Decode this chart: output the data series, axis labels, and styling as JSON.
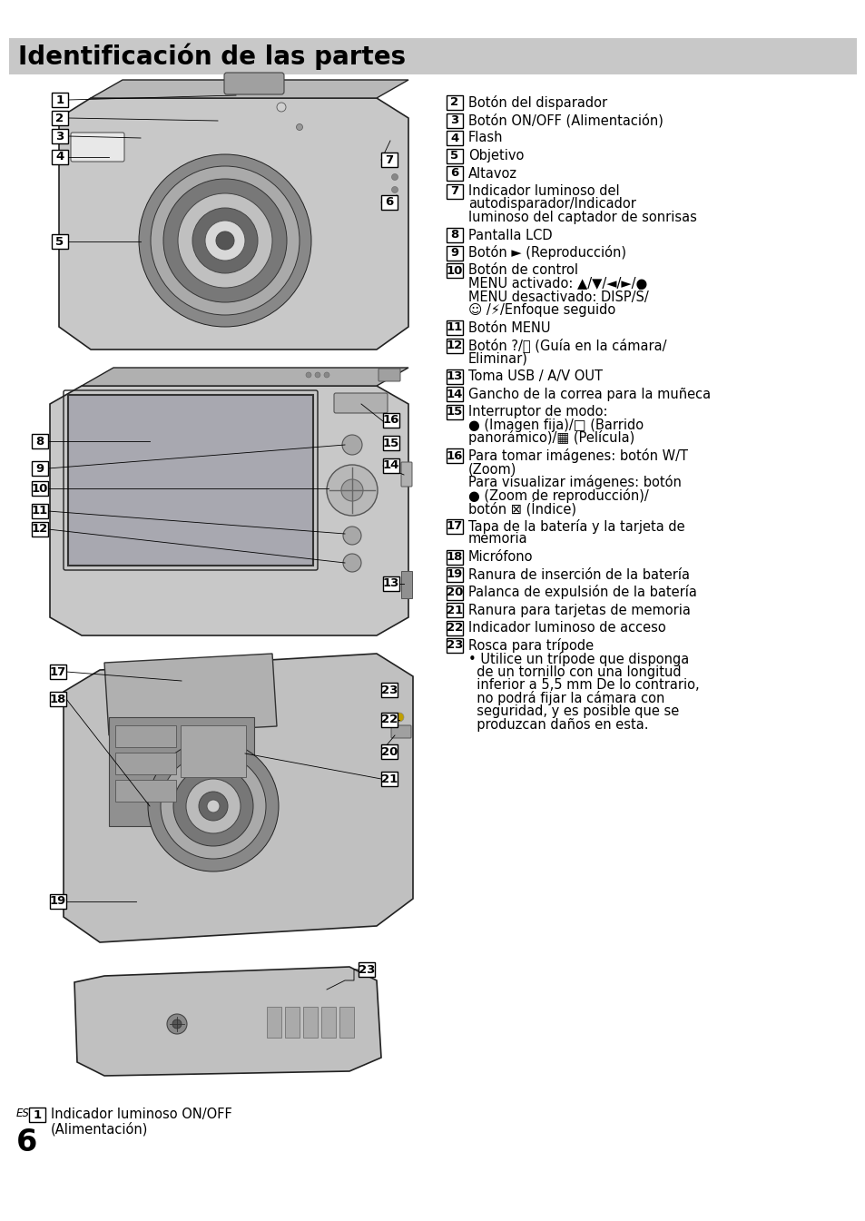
{
  "title": "Identificación de las partes",
  "title_bg_color": "#c8c8c8",
  "title_text_color": "#000000",
  "title_fontsize": 20,
  "bg_color": "#ffffff",
  "body_fontsize": 10.5,
  "num_fontsize": 9.5,
  "right_texts": [
    [
      2,
      "Botón del disparador"
    ],
    [
      3,
      "Botón ON/OFF (Alimentación)"
    ],
    [
      4,
      "Flash"
    ],
    [
      5,
      "Objetivo"
    ],
    [
      6,
      "Altavoz"
    ],
    [
      7,
      "Indicador luminoso del\nautodisparador/Indicador\nluminoso del captador de sonrisas"
    ],
    [
      8,
      "Pantalla LCD"
    ],
    [
      9,
      "Botón ► (Reproducción)"
    ],
    [
      10,
      "Botón de control\nMENU activado: ▲/▼/◄/►/●\nMENU desactivado: DISP/Š/\n☺ /⚡/Enfoque seguido"
    ],
    [
      11,
      "Botón MENU"
    ],
    [
      12,
      "Botón ?/゠ (Guía en la cámara/\nEliminar)"
    ],
    [
      13,
      "Toma USB / A/V OUT"
    ],
    [
      14,
      "Gancho de la correa para la muñeca"
    ],
    [
      15,
      "Interruptor de modo:\n● (Imagen fija)/□ (Barrido\npanorámico)/▦ (Película)"
    ],
    [
      16,
      "Para tomar imágenes: botón W/T\n(Zoom)\nPara visualizar imágenes: botón\n● (Zoom de reproducción)/\nbotón ⊠ (Índice)"
    ],
    [
      17,
      "Tapa de la batería y la tarjeta de\nmemoria"
    ],
    [
      18,
      "Micrófono"
    ],
    [
      19,
      "Ranura de inserción de la batería"
    ],
    [
      20,
      "Palanca de expulsión de la batería"
    ],
    [
      21,
      "Ranura para tarjetas de memoria"
    ],
    [
      22,
      "Indicador luminoso de acceso"
    ],
    [
      23,
      "Rosca para trípode\n• Utilice un trípode que disponga\n  de un tornillo con una longitud\n  inferior a 5,5 mm De lo contrario,\n  no podrá fijar la cámara con\n  seguridad, y es posible que se\n  produzcan daños en esta."
    ]
  ],
  "bottom_left_num": "1",
  "bottom_left_text1": "Indicador luminoso ON/OFF",
  "bottom_left_text2": "(Alimentación)",
  "page_num": "6",
  "es_label": "ES"
}
